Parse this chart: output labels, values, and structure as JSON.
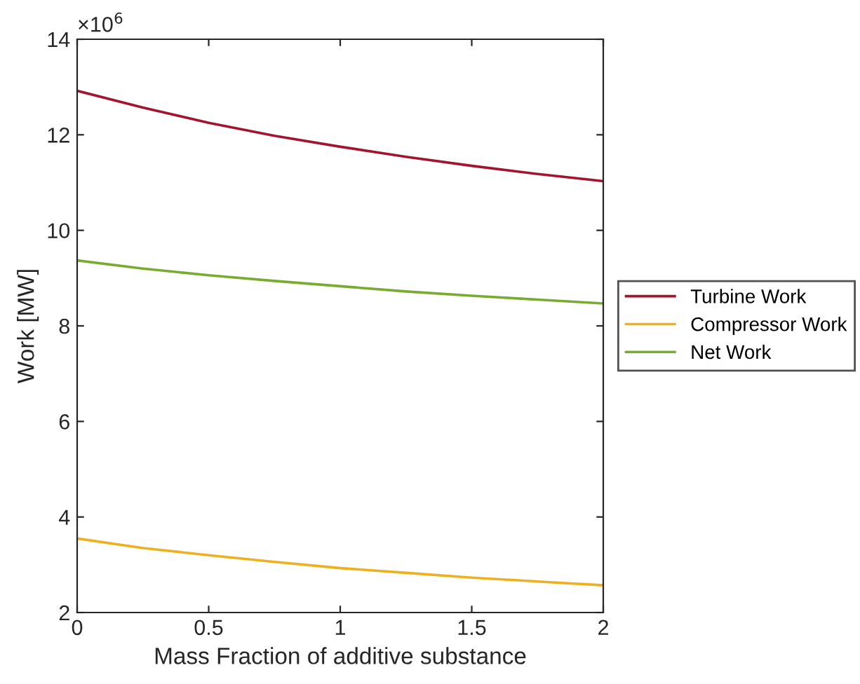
{
  "chart_data": {
    "type": "line",
    "xlabel": "Mass Fraction of additive substance",
    "ylabel": "Work [MW]",
    "annotations": [
      "×10$^{6}$"
    ],
    "x": [
      0,
      0.25,
      0.5,
      0.75,
      1,
      1.25,
      1.5,
      1.75,
      2
    ],
    "series": [
      {
        "name": "Turbine Work",
        "color": "#a2142f",
        "values": [
          12.92,
          12.57,
          12.25,
          11.98,
          11.75,
          11.54,
          11.35,
          11.18,
          11.03
        ]
      },
      {
        "name": "Compressor Work",
        "color": "#edb120",
        "values": [
          3.55,
          3.35,
          3.2,
          3.06,
          2.93,
          2.83,
          2.73,
          2.65,
          2.57
        ]
      },
      {
        "name": "Net Work",
        "color": "#77ac30",
        "values": [
          9.37,
          9.2,
          9.06,
          8.94,
          8.83,
          8.72,
          8.63,
          8.55,
          8.47
        ]
      }
    ],
    "xlim": [
      0,
      2
    ],
    "xticks": [
      0,
      0.5,
      1,
      1.5,
      2
    ],
    "ylim": [
      2,
      14
    ],
    "yticks": [
      2,
      4,
      6,
      8,
      10,
      12,
      14
    ],
    "legend": "right",
    "grid": false,
    "marker": "none",
    "line_style": "solid"
  }
}
